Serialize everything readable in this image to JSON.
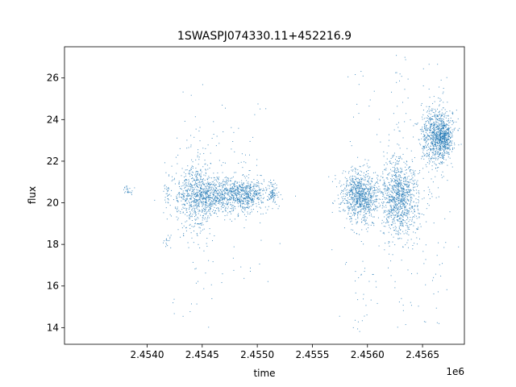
{
  "chart_data": {
    "type": "scatter",
    "title": "1SWASPJ074330.11+452216.9",
    "xlabel": "time",
    "ylabel": "flux",
    "x_offset_label": "1e6",
    "xlim": [
      2.45325,
      2.45688
    ],
    "ylim": [
      13.2,
      27.5
    ],
    "x_ticks": [
      2.454,
      2.4545,
      2.455,
      2.4555,
      2.456,
      2.4565
    ],
    "x_tick_labels": [
      "2.4540",
      "2.4545",
      "2.4550",
      "2.4555",
      "2.4560",
      "2.4565"
    ],
    "y_ticks": [
      14,
      16,
      18,
      20,
      22,
      24,
      26
    ],
    "y_tick_labels": [
      "14",
      "16",
      "18",
      "20",
      "22",
      "24",
      "26"
    ],
    "grid": false,
    "marker_color": "#1f77b4",
    "clusters": [
      {
        "x": 2.45383,
        "x_spread": 2e-05,
        "y": 20.6,
        "y_spread": 0.15,
        "y_min": 20.3,
        "y_max": 20.9,
        "n": 25
      },
      {
        "x": 2.45419,
        "x_spread": 2e-05,
        "y": 20.5,
        "y_spread": 0.25,
        "y_min": 19.9,
        "y_max": 21.0,
        "n": 25
      },
      {
        "x": 2.45419,
        "x_spread": 2e-05,
        "y": 18.1,
        "y_spread": 0.2,
        "y_min": 17.6,
        "y_max": 18.6,
        "n": 15
      },
      {
        "x": 2.45443,
        "x_spread": 0.0001,
        "y": 20.4,
        "y_spread": 0.9,
        "y_min": 13.8,
        "y_max": 26.9,
        "n": 600
      },
      {
        "x": 2.45454,
        "x_spread": 9e-05,
        "y": 20.4,
        "y_spread": 0.45,
        "y_min": 14.0,
        "y_max": 24.6,
        "n": 350
      },
      {
        "x": 2.45484,
        "x_spread": 0.00014,
        "y": 20.4,
        "y_spread": 0.4,
        "y_min": 16.0,
        "y_max": 24.8,
        "n": 900
      },
      {
        "x": 2.45514,
        "x_spread": 2e-05,
        "y": 20.4,
        "y_spread": 0.2,
        "y_min": 19.7,
        "y_max": 21.1,
        "n": 70
      },
      {
        "x": 2.45593,
        "x_spread": 8e-05,
        "y": 20.3,
        "y_spread": 0.6,
        "y_min": 13.8,
        "y_max": 26.8,
        "n": 900
      },
      {
        "x": 2.45629,
        "x_spread": 9e-05,
        "y": 20.3,
        "y_spread": 0.9,
        "y_min": 13.9,
        "y_max": 27.1,
        "n": 1100
      },
      {
        "x": 2.45663,
        "x_spread": 7e-05,
        "y": 23.2,
        "y_spread": 0.7,
        "y_min": 14.0,
        "y_max": 27.0,
        "n": 900
      },
      {
        "x": 2.4567,
        "x_spread": 4e-05,
        "y": 23.2,
        "y_spread": 0.35,
        "y_min": 22.2,
        "y_max": 24.2,
        "n": 250
      }
    ]
  }
}
